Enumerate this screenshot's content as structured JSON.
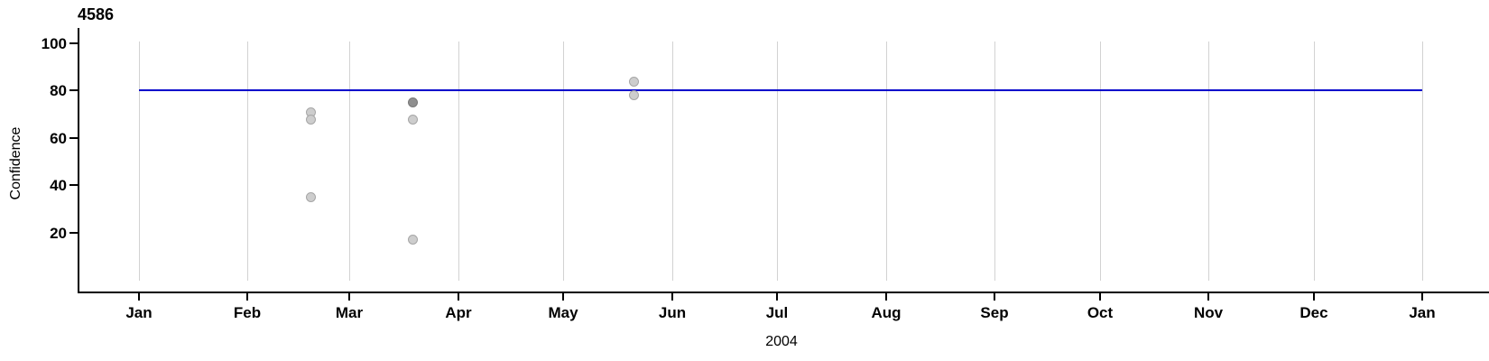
{
  "title": "4586",
  "y_axis": {
    "label": "Confidence",
    "ticks": [
      100,
      80,
      60,
      40,
      20
    ]
  },
  "x_axis": {
    "label": "2004",
    "ticks": [
      {
        "date": "2004-01-01",
        "label": "Jan"
      },
      {
        "date": "2004-02-01",
        "label": "Feb"
      },
      {
        "date": "2004-03-01",
        "label": "Mar"
      },
      {
        "date": "2004-04-01",
        "label": "Apr"
      },
      {
        "date": "2004-05-01",
        "label": "May"
      },
      {
        "date": "2004-06-01",
        "label": "Jun"
      },
      {
        "date": "2004-07-01",
        "label": "Jul"
      },
      {
        "date": "2004-08-01",
        "label": "Aug"
      },
      {
        "date": "2004-09-01",
        "label": "Sep"
      },
      {
        "date": "2004-10-01",
        "label": "Oct"
      },
      {
        "date": "2004-11-01",
        "label": "Nov"
      },
      {
        "date": "2004-12-01",
        "label": "Dec"
      },
      {
        "date": "2005-01-01",
        "label": "Jan"
      }
    ]
  },
  "chart_data": {
    "type": "scatter",
    "title": "4586",
    "xlabel": "2004",
    "ylabel": "Confidence",
    "x_range": [
      "2004-01-01",
      "2005-01-01"
    ],
    "ylim": [
      0,
      105
    ],
    "y_ticks": [
      20,
      40,
      60,
      80,
      100
    ],
    "grid": true,
    "legend_position": "none",
    "reference_line": {
      "y": 80,
      "color": "#0000cc"
    },
    "points": [
      {
        "date": "2004-02-19",
        "value": 71,
        "shade": "light"
      },
      {
        "date": "2004-02-19",
        "value": 68,
        "shade": "light"
      },
      {
        "date": "2004-02-19",
        "value": 35,
        "shade": "light"
      },
      {
        "date": "2004-03-19",
        "value": 75,
        "shade": "dark"
      },
      {
        "date": "2004-03-19",
        "value": 68,
        "shade": "light"
      },
      {
        "date": "2004-03-19",
        "value": 17,
        "shade": "light"
      },
      {
        "date": "2004-05-21",
        "value": 84,
        "shade": "light"
      },
      {
        "date": "2004-05-21",
        "value": 78,
        "shade": "light"
      }
    ],
    "colors": {
      "point_light_fill": "#cdcdcd",
      "point_light_border": "#a6a6a6",
      "point_dark_fill": "#8f8f8f",
      "point_dark_border": "#787878",
      "grid": "#d2d2d2",
      "axis": "#000000",
      "reference_line": "#0000cc"
    }
  }
}
